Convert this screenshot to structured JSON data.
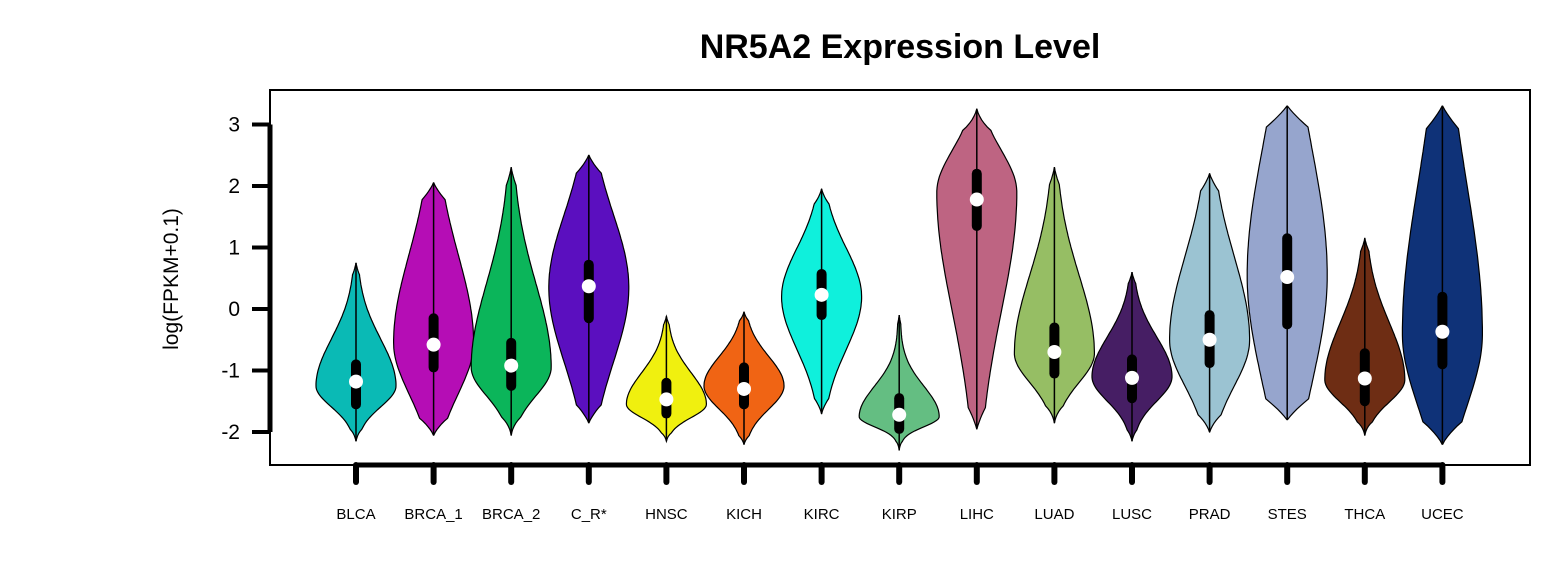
{
  "chart_data": {
    "type": "violin",
    "title": "NR5A2 Expression Level",
    "xlabel": "",
    "ylabel": "log(FPKM+0.1)",
    "ylim": [
      -2.5,
      3.5
    ],
    "yticks": [
      -2,
      -1,
      0,
      1,
      2,
      3
    ],
    "legend": "none",
    "grid": false,
    "series": [
      {
        "category": "BLCA",
        "color": "#0ABAB5",
        "min": -2.15,
        "max": 0.75,
        "q1": -1.55,
        "median": -1.18,
        "q3": -0.9,
        "mode": -1.25,
        "spread": 0.38
      },
      {
        "category": "BRCA_1",
        "color": "#B50DB5",
        "min": -2.05,
        "max": 2.05,
        "q1": -0.95,
        "median": -0.58,
        "q3": -0.15,
        "mode": -0.55,
        "spread": 0.55
      },
      {
        "category": "BRCA_2",
        "color": "#0BB55A",
        "min": -2.05,
        "max": 2.3,
        "q1": -1.25,
        "median": -0.92,
        "q3": -0.55,
        "mode": -0.95,
        "spread": 0.42
      },
      {
        "category": "C_R*",
        "color": "#5B0FBF",
        "min": -1.85,
        "max": 2.5,
        "q1": -0.15,
        "median": 0.37,
        "q3": 0.72,
        "mode": 0.35,
        "spread": 0.55
      },
      {
        "category": "HNSC",
        "color": "#F0F00F",
        "min": -2.15,
        "max": -0.12,
        "q1": -1.7,
        "median": -1.47,
        "q3": -1.2,
        "mode": -1.55,
        "spread": 0.36
      },
      {
        "category": "KICH",
        "color": "#F06414",
        "min": -2.2,
        "max": -0.05,
        "q1": -1.55,
        "median": -1.3,
        "q3": -0.95,
        "mode": -1.25,
        "spread": 0.4
      },
      {
        "category": "KIRC",
        "color": "#0FF0DC",
        "min": -1.7,
        "max": 1.95,
        "q1": -0.1,
        "median": 0.23,
        "q3": 0.57,
        "mode": 0.2,
        "spread": 0.45
      },
      {
        "category": "KIRP",
        "color": "#64BE82",
        "min": -2.3,
        "max": -0.1,
        "q1": -1.95,
        "median": -1.72,
        "q3": -1.45,
        "mode": -1.75,
        "spread": 0.3
      },
      {
        "category": "LIHC",
        "color": "#BE6482",
        "min": -1.95,
        "max": 3.25,
        "q1": 1.35,
        "median": 1.78,
        "q3": 2.2,
        "mode": 1.9,
        "spread": 0.5
      },
      {
        "category": "LUAD",
        "color": "#96BE64",
        "min": -1.85,
        "max": 2.3,
        "q1": -1.05,
        "median": -0.7,
        "q3": -0.3,
        "mode": -0.72,
        "spread": 0.42
      },
      {
        "category": "LUSC",
        "color": "#461E64",
        "min": -2.15,
        "max": 0.6,
        "q1": -1.45,
        "median": -1.12,
        "q3": -0.82,
        "mode": -1.1,
        "spread": 0.38
      },
      {
        "category": "PRAD",
        "color": "#9BC3D2",
        "min": -2.0,
        "max": 2.2,
        "q1": -0.88,
        "median": -0.5,
        "q3": -0.1,
        "mode": -0.5,
        "spread": 0.5
      },
      {
        "category": "STES",
        "color": "#96A5CD",
        "min": -1.8,
        "max": 3.3,
        "q1": -0.25,
        "median": 0.52,
        "q3": 1.15,
        "mode": 0.55,
        "spread": 0.75
      },
      {
        "category": "THCA",
        "color": "#6E2D14",
        "min": -2.05,
        "max": 1.15,
        "q1": -1.5,
        "median": -1.13,
        "q3": -0.72,
        "mode": -1.15,
        "spread": 0.4
      },
      {
        "category": "UCEC",
        "color": "#0F3278",
        "min": -2.2,
        "max": 3.3,
        "q1": -0.9,
        "median": -0.37,
        "q3": 0.2,
        "mode": -0.4,
        "spread": 0.65
      }
    ]
  }
}
